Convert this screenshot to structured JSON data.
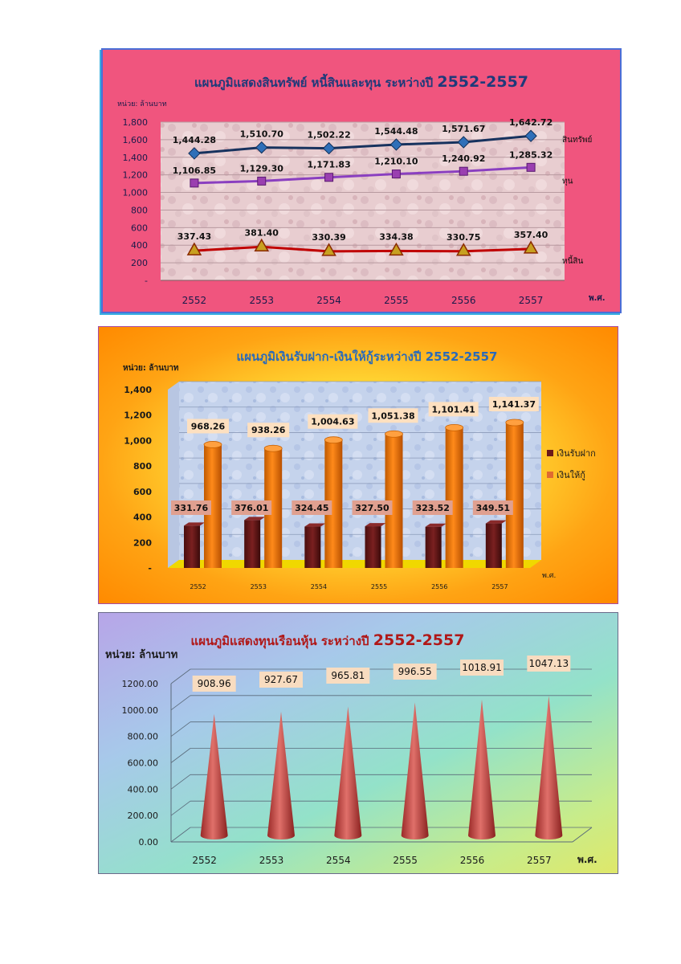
{
  "colors": {
    "assets": "#17325e",
    "equity": "#8a3fc0",
    "liabilities": "#c00000",
    "deposits": "#6b1a1a",
    "loans": "#ff7a00",
    "shares": "#c85a55"
  },
  "chart_data": [
    {
      "type": "line",
      "title": "แผนภูมิแสดงสินทรัพย์ หนี้สินและทุน ระหว่างปี ",
      "title_years": "2552-2557",
      "unit_label": "หน่วย: ล้านบาท",
      "xlabel": "พ.ศ.",
      "categories": [
        "2552",
        "2553",
        "2554",
        "2555",
        "2556",
        "2557"
      ],
      "ylim": [
        0,
        1800
      ],
      "yticks": [
        "-",
        "200",
        "400",
        "600",
        "800",
        "1,000",
        "1,200",
        "1,400",
        "1,600",
        "1,800"
      ],
      "series": [
        {
          "name": "สินทรัพย์",
          "values": [
            1444.28,
            1510.7,
            1502.22,
            1544.48,
            1571.67,
            1642.72
          ],
          "labels": [
            "1,444.28",
            "1,510.70",
            "1,502.22",
            "1,544.48",
            "1,571.67",
            "1,642.72"
          ]
        },
        {
          "name": "ทุน",
          "values": [
            1106.85,
            1129.3,
            1171.83,
            1210.1,
            1240.92,
            1285.32
          ],
          "labels": [
            "1,106.85",
            "1,129.30",
            "1,171.83",
            "1,210.10",
            "1,240.92",
            "1,285.32"
          ]
        },
        {
          "name": "หนี้สิน",
          "values": [
            337.43,
            381.4,
            330.39,
            334.38,
            330.75,
            357.4
          ],
          "labels": [
            "337.43",
            "381.40",
            "330.39",
            "334.38",
            "330.75",
            "357.40"
          ]
        }
      ]
    },
    {
      "type": "bar",
      "title": "แผนภูมิเงินรับฝาก-เงินให้กู้ระหว่างปี 2552-2557",
      "unit_label": "หน่วย: ล้านบาท",
      "xlabel": "พ.ศ.",
      "categories": [
        "2552",
        "2553",
        "2554",
        "2555",
        "2556",
        "2557"
      ],
      "ylim": [
        0,
        1400
      ],
      "yticks": [
        "-",
        "200",
        "400",
        "600",
        "800",
        "1,000",
        "1,200",
        "1,400"
      ],
      "series": [
        {
          "name": "เงินรับฝาก",
          "values": [
            331.76,
            376.01,
            324.45,
            327.5,
            323.52,
            349.51
          ],
          "labels": [
            "331.76",
            "376.01",
            "324.45",
            "327.50",
            "323.52",
            "349.51"
          ]
        },
        {
          "name": "เงินให้กู้",
          "values": [
            968.26,
            938.26,
            1004.63,
            1051.38,
            1101.41,
            1141.37
          ],
          "labels": [
            "968.26",
            "938.26",
            "1,004.63",
            "1,051.38",
            "1,101.41",
            "1,141.37"
          ]
        }
      ]
    },
    {
      "type": "bar",
      "title": "แผนภูมิแสดงทุนเรือนหุ้น ระหว่างปี ",
      "title_years": "2552-2557",
      "unit_label": "หน่วย: ล้านบาท",
      "xlabel": "พ.ศ.",
      "categories": [
        "2552",
        "2553",
        "2554",
        "2555",
        "2556",
        "2557"
      ],
      "ylim": [
        0,
        1200
      ],
      "yticks": [
        "0.00",
        "200.00",
        "400.00",
        "600.00",
        "800.00",
        "1000.00",
        "1200.00"
      ],
      "values": [
        908.96,
        927.67,
        965.81,
        996.55,
        1018.91,
        1047.13
      ],
      "labels": [
        "908.96",
        "927.67",
        "965.81",
        "996.55",
        "1018.91",
        "1047.13"
      ]
    }
  ]
}
